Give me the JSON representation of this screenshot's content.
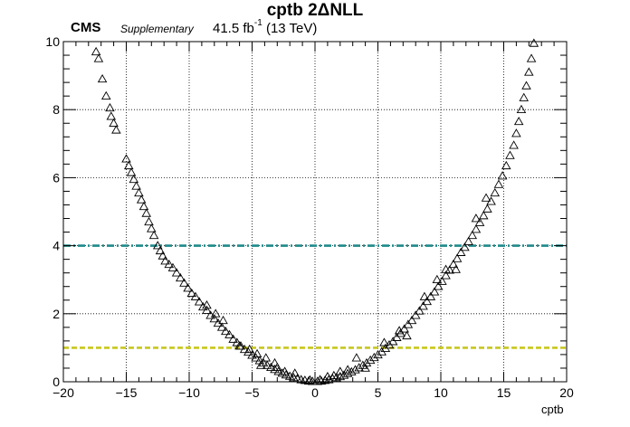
{
  "header": {
    "title": "cptb 2ΔNLL",
    "experiment": "CMS",
    "status": "Supplementary",
    "lumi_value": "41.5 fb",
    "lumi_exp": "-1",
    "energy": "(13 TeV)"
  },
  "chart_data": {
    "type": "scatter",
    "title": "cptb 2ΔNLL",
    "xlabel": "cptb",
    "ylabel": "",
    "xlim": [
      -20,
      20
    ],
    "ylim": [
      0,
      10
    ],
    "xticks": [
      -20,
      -15,
      -10,
      -5,
      0,
      5,
      10,
      15,
      20
    ],
    "xtick_labels": [
      "−20",
      "−15",
      "−10",
      "−5",
      "0",
      "5",
      "10",
      "15",
      "20"
    ],
    "yticks": [
      0,
      2,
      4,
      6,
      8,
      10
    ],
    "ytick_labels": [
      "0",
      "2",
      "4",
      "6",
      "8",
      "10"
    ],
    "grid": true,
    "marker": "open-triangle",
    "reference_lines": [
      {
        "y": 4,
        "color": "#1f8a8a",
        "style": "dash-dot"
      },
      {
        "y": 1,
        "color": "#c8c81e",
        "style": "dashed"
      }
    ],
    "series": [
      {
        "points": [
          [
            -17.4,
            9.7
          ],
          [
            -17.2,
            9.5
          ],
          [
            -16.9,
            8.9
          ],
          [
            -16.6,
            8.4
          ],
          [
            -16.3,
            8.05
          ],
          [
            -16.2,
            7.8
          ],
          [
            -16.0,
            7.6
          ],
          [
            -15.8,
            7.4
          ],
          [
            -15.0,
            6.55
          ],
          [
            -14.8,
            6.35
          ],
          [
            -14.6,
            6.15
          ],
          [
            -14.4,
            5.95
          ],
          [
            -14.2,
            5.75
          ],
          [
            -14.0,
            5.55
          ],
          [
            -13.8,
            5.35
          ],
          [
            -13.6,
            5.15
          ],
          [
            -13.4,
            4.95
          ],
          [
            -13.2,
            4.7
          ],
          [
            -13.0,
            4.5
          ],
          [
            -12.8,
            4.3
          ],
          [
            -12.5,
            4.0
          ],
          [
            -12.3,
            3.85
          ],
          [
            -12.1,
            3.7
          ],
          [
            -11.9,
            3.55
          ],
          [
            -11.6,
            3.45
          ],
          [
            -11.3,
            3.35
          ],
          [
            -11.0,
            3.2
          ],
          [
            -10.7,
            3.05
          ],
          [
            -10.4,
            2.9
          ],
          [
            -10.1,
            2.75
          ],
          [
            -9.8,
            2.6
          ],
          [
            -9.5,
            2.5
          ],
          [
            -9.2,
            2.35
          ],
          [
            -8.9,
            2.2
          ],
          [
            -8.6,
            2.1
          ],
          [
            -8.3,
            1.95
          ],
          [
            -8.0,
            1.85
          ],
          [
            -7.7,
            1.72
          ],
          [
            -7.4,
            1.6
          ],
          [
            -7.1,
            1.48
          ],
          [
            -6.8,
            1.38
          ],
          [
            -6.5,
            1.25
          ],
          [
            -6.2,
            1.15
          ],
          [
            -5.9,
            1.05
          ],
          [
            -5.6,
            0.95
          ],
          [
            -5.3,
            0.87
          ],
          [
            -5.0,
            0.78
          ],
          [
            -4.7,
            0.7
          ],
          [
            -4.4,
            0.62
          ],
          [
            -4.1,
            0.55
          ],
          [
            -3.8,
            0.48
          ],
          [
            -3.5,
            0.42
          ],
          [
            -3.2,
            0.36
          ],
          [
            -2.9,
            0.3
          ],
          [
            -2.6,
            0.25
          ],
          [
            -2.3,
            0.2
          ],
          [
            -2.0,
            0.16
          ],
          [
            -1.7,
            0.12
          ],
          [
            -1.4,
            0.09
          ],
          [
            -1.1,
            0.06
          ],
          [
            -0.8,
            0.04
          ],
          [
            -0.5,
            0.02
          ],
          [
            -0.2,
            0.01
          ],
          [
            -8.6,
            2.25
          ],
          [
            -7.9,
            2.0
          ],
          [
            -7.3,
            1.8
          ],
          [
            -6.0,
            1.05
          ],
          [
            -5.2,
            0.95
          ],
          [
            -4.6,
            0.82
          ],
          [
            -3.9,
            0.7
          ],
          [
            -3.2,
            0.55
          ],
          [
            -2.4,
            0.3
          ],
          [
            -1.6,
            0.25
          ],
          [
            -4.3,
            0.48
          ],
          [
            -3.0,
            0.42
          ],
          [
            0.2,
            0.01
          ],
          [
            0.5,
            0.02
          ],
          [
            0.8,
            0.04
          ],
          [
            1.1,
            0.06
          ],
          [
            1.4,
            0.09
          ],
          [
            1.7,
            0.12
          ],
          [
            2.0,
            0.15
          ],
          [
            2.3,
            0.19
          ],
          [
            2.6,
            0.24
          ],
          [
            2.9,
            0.29
          ],
          [
            3.2,
            0.35
          ],
          [
            3.5,
            0.41
          ],
          [
            3.8,
            0.48
          ],
          [
            4.1,
            0.55
          ],
          [
            4.4,
            0.63
          ],
          [
            4.7,
            0.71
          ],
          [
            5.0,
            0.79
          ],
          [
            5.3,
            0.88
          ],
          [
            5.6,
            0.98
          ],
          [
            5.9,
            1.08
          ],
          [
            6.2,
            1.18
          ],
          [
            6.5,
            1.3
          ],
          [
            6.8,
            1.42
          ],
          [
            7.1,
            1.55
          ],
          [
            7.4,
            1.68
          ],
          [
            7.7,
            1.8
          ],
          [
            8.0,
            1.95
          ],
          [
            8.3,
            2.08
          ],
          [
            8.6,
            2.22
          ],
          [
            8.9,
            2.36
          ],
          [
            9.2,
            2.5
          ],
          [
            9.5,
            2.64
          ],
          [
            9.8,
            2.8
          ],
          [
            10.1,
            2.95
          ],
          [
            10.4,
            3.12
          ],
          [
            10.7,
            3.28
          ],
          [
            11.0,
            3.45
          ],
          [
            11.3,
            3.62
          ],
          [
            11.6,
            3.8
          ],
          [
            11.9,
            3.95
          ],
          [
            12.2,
            4.12
          ],
          [
            12.5,
            4.3
          ],
          [
            12.8,
            4.48
          ],
          [
            13.1,
            4.68
          ],
          [
            13.4,
            4.88
          ],
          [
            13.7,
            5.08
          ],
          [
            14.0,
            5.3
          ],
          [
            14.3,
            5.55
          ],
          [
            14.6,
            5.8
          ],
          [
            14.9,
            6.05
          ],
          [
            15.2,
            6.35
          ],
          [
            15.5,
            6.65
          ],
          [
            15.8,
            6.95
          ],
          [
            16.0,
            7.3
          ],
          [
            16.2,
            7.65
          ],
          [
            16.4,
            8.0
          ],
          [
            16.6,
            8.35
          ],
          [
            16.8,
            8.7
          ],
          [
            17.0,
            9.1
          ],
          [
            17.2,
            9.5
          ],
          [
            17.4,
            9.95
          ],
          [
            1.0,
            0.15
          ],
          [
            2.0,
            0.3
          ],
          [
            3.3,
            0.7
          ],
          [
            4.0,
            0.4
          ],
          [
            5.5,
            1.15
          ],
          [
            6.7,
            1.5
          ],
          [
            7.3,
            1.35
          ],
          [
            8.7,
            2.5
          ],
          [
            9.7,
            3.0
          ],
          [
            10.4,
            3.3
          ],
          [
            11.2,
            3.3
          ],
          [
            12.8,
            4.8
          ],
          [
            13.6,
            5.4
          ],
          [
            -0.4,
            0.05
          ],
          [
            0.4,
            0.06
          ],
          [
            1.5,
            0.18
          ],
          [
            2.6,
            0.35
          ]
        ]
      }
    ]
  }
}
